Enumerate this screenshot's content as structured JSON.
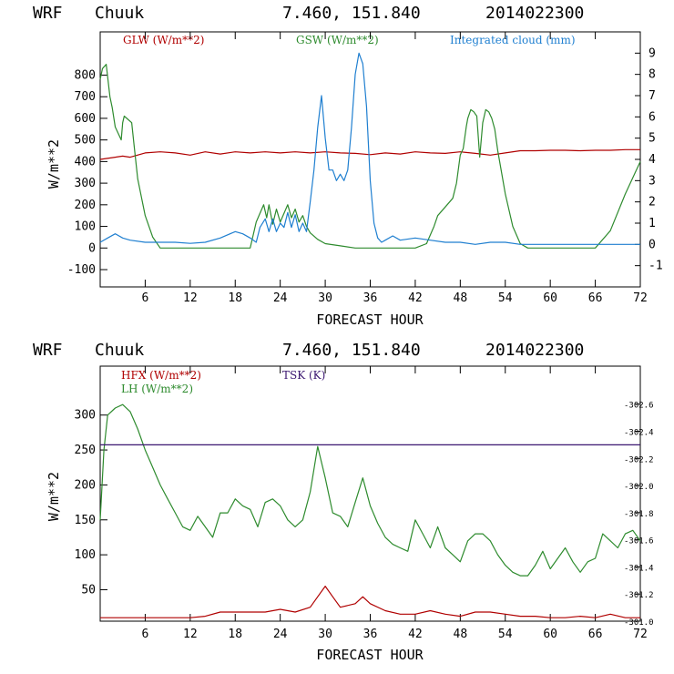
{
  "chart_data": [
    {
      "type": "line",
      "header": {
        "model": "WRF",
        "station": "Chuuk",
        "coords": "7.460, 151.840",
        "date": "2014022300"
      },
      "xlabel": "FORECAST HOUR",
      "ylabel": "W/m**2",
      "xlim": [
        0,
        72
      ],
      "xticks": [
        6,
        12,
        18,
        24,
        30,
        36,
        42,
        48,
        54,
        60,
        66,
        72
      ],
      "ylim": [
        -180,
        1000
      ],
      "yticks": [
        -100,
        0,
        100,
        200,
        300,
        400,
        500,
        600,
        700,
        800
      ],
      "y2label": "Integrated cloud (mm)",
      "y2lim": [
        -2,
        10
      ],
      "y2ticks": [
        -1,
        0,
        1,
        2,
        3,
        4,
        5,
        6,
        7,
        8,
        9
      ],
      "series": [
        {
          "name": "GLW (W/m**2)",
          "color": "#b00000",
          "axis": "left",
          "x": [
            0,
            2,
            3,
            4,
            6,
            8,
            10,
            12,
            14,
            16,
            18,
            20,
            22,
            24,
            26,
            28,
            30,
            32,
            34,
            36,
            38,
            40,
            42,
            44,
            46,
            48,
            50,
            52,
            54,
            56,
            58,
            60,
            62,
            64,
            66,
            68,
            70,
            72
          ],
          "values": [
            410,
            420,
            425,
            420,
            440,
            445,
            440,
            430,
            445,
            435,
            445,
            440,
            445,
            440,
            445,
            440,
            445,
            440,
            438,
            432,
            440,
            435,
            445,
            440,
            438,
            445,
            438,
            430,
            440,
            450,
            450,
            452,
            452,
            450,
            452,
            452,
            455,
            455
          ]
        },
        {
          "name": "GSW (W/m**2)",
          "color": "#2e8b2e",
          "axis": "left",
          "x": [
            0,
            0.3,
            0.8,
            1.3,
            1.6,
            2,
            2.8,
            3,
            3.2,
            4.2,
            4.5,
            5,
            6,
            7,
            8,
            9,
            10,
            20,
            20.8,
            21.3,
            21.8,
            22.2,
            22.5,
            23,
            23.5,
            24,
            25,
            25.5,
            26,
            26.5,
            27,
            27.5,
            28,
            29,
            30,
            32,
            34,
            36,
            38,
            40,
            42,
            43.5,
            44.5,
            45,
            46,
            47,
            47.5,
            48,
            48.4,
            48.8,
            49,
            49.4,
            49.8,
            50.2,
            50.6,
            51,
            51.4,
            51.8,
            52.2,
            52.6,
            53,
            54,
            55,
            56,
            57,
            58,
            59,
            60,
            66,
            68,
            70,
            72
          ],
          "values": [
            780,
            830,
            850,
            700,
            650,
            560,
            500,
            580,
            610,
            580,
            480,
            320,
            150,
            50,
            0,
            0,
            0,
            0,
            120,
            160,
            200,
            140,
            200,
            110,
            180,
            120,
            200,
            140,
            180,
            120,
            150,
            100,
            70,
            40,
            20,
            10,
            0,
            0,
            0,
            0,
            0,
            20,
            100,
            150,
            190,
            230,
            300,
            430,
            460,
            560,
            600,
            640,
            630,
            610,
            420,
            580,
            640,
            630,
            600,
            550,
            450,
            250,
            100,
            20,
            0,
            0,
            0,
            0,
            0,
            80,
            250,
            400
          ]
        },
        {
          "name": "Integrated cloud (mm)",
          "color": "#1f7fd0",
          "axis": "right",
          "x": [
            0,
            1,
            2,
            3,
            4,
            6,
            8,
            10,
            12,
            14,
            16,
            18,
            19,
            20,
            20.8,
            21.3,
            22,
            22.5,
            23,
            23.5,
            24,
            24.5,
            25,
            25.5,
            26,
            26.5,
            27,
            27.5,
            28,
            28.5,
            29,
            29.5,
            30,
            30.5,
            31,
            31.5,
            32,
            32.5,
            33,
            33.5,
            34,
            34.5,
            35,
            35.5,
            36,
            36.5,
            37,
            37.5,
            38,
            39,
            40,
            42,
            44,
            46,
            48,
            50,
            52,
            54,
            56,
            58,
            60,
            62,
            64,
            66,
            68,
            70,
            72
          ],
          "values": [
            0.1,
            0.3,
            0.5,
            0.3,
            0.2,
            0.1,
            0.1,
            0.1,
            0.05,
            0.1,
            0.3,
            0.6,
            0.5,
            0.3,
            0.1,
            0.8,
            1.2,
            0.6,
            1.2,
            0.6,
            1.0,
            0.8,
            1.5,
            0.8,
            1.4,
            0.6,
            1.0,
            0.6,
            2.0,
            3.5,
            5.5,
            7.0,
            5.0,
            3.5,
            3.5,
            3.0,
            3.3,
            3.0,
            3.5,
            5.5,
            8.0,
            9.0,
            8.5,
            6.5,
            3.0,
            1.0,
            0.3,
            0.1,
            0.2,
            0.4,
            0.2,
            0.3,
            0.2,
            0.1,
            0.1,
            0.0,
            0.1,
            0.1,
            0.0,
            0.0,
            0.0,
            0.0,
            0.0,
            0.0,
            0.0,
            0.0,
            0.0
          ]
        }
      ]
    },
    {
      "type": "line",
      "header": {
        "model": "WRF",
        "station": "Chuuk",
        "coords": "7.460, 151.840",
        "date": "2014022300"
      },
      "xlabel": "FORECAST HOUR",
      "ylabel": "W/m**2",
      "xlim": [
        0,
        72
      ],
      "xticks": [
        6,
        12,
        18,
        24,
        30,
        36,
        42,
        48,
        54,
        60,
        66,
        72
      ],
      "ylim": [
        5,
        370
      ],
      "yticks": [
        50,
        100,
        150,
        200,
        250,
        300
      ],
      "y2label": "TSK (K)",
      "y2lim": [
        301.0,
        302.88
      ],
      "y2ticks": [
        "302.6",
        "302.4",
        "302.2",
        "302.0",
        "301.8",
        "301.6",
        "301.4",
        "301.2",
        "301.0"
      ],
      "y2tickvalues": [
        302.6,
        302.4,
        302.2,
        302.0,
        301.8,
        301.6,
        301.4,
        301.2,
        301.0
      ],
      "series": [
        {
          "name": "HFX (W/m**2)",
          "color": "#b00000",
          "axis": "left",
          "x": [
            0,
            2,
            4,
            6,
            8,
            10,
            12,
            14,
            16,
            18,
            20,
            22,
            24,
            26,
            28,
            29,
            30,
            31,
            32,
            34,
            35,
            36,
            38,
            40,
            42,
            44,
            46,
            48,
            50,
            52,
            54,
            56,
            58,
            60,
            62,
            64,
            66,
            68,
            70,
            72
          ],
          "values": [
            10,
            10,
            10,
            10,
            10,
            10,
            10,
            12,
            18,
            18,
            18,
            18,
            22,
            18,
            25,
            40,
            55,
            40,
            25,
            30,
            40,
            30,
            20,
            15,
            15,
            20,
            15,
            12,
            18,
            18,
            15,
            12,
            12,
            10,
            10,
            12,
            10,
            15,
            10,
            10
          ]
        },
        {
          "name": "LH (W/m**2)",
          "color": "#2e8b2e",
          "axis": "left",
          "x": [
            0,
            0.5,
            1,
            2,
            3,
            4,
            5,
            6,
            7,
            8,
            9,
            10,
            11,
            12,
            13,
            14,
            15,
            16,
            17,
            18,
            19,
            20,
            21,
            22,
            23,
            24,
            25,
            26,
            27,
            28,
            29,
            30,
            31,
            32,
            33,
            34,
            35,
            36,
            37,
            38,
            39,
            40,
            41,
            42,
            43,
            44,
            45,
            46,
            47,
            48,
            49,
            50,
            51,
            52,
            53,
            54,
            55,
            56,
            57,
            58,
            59,
            60,
            61,
            62,
            63,
            64,
            65,
            66,
            67,
            68,
            69,
            70,
            71,
            72
          ],
          "values": [
            150,
            250,
            300,
            310,
            315,
            305,
            280,
            250,
            225,
            200,
            180,
            160,
            140,
            135,
            155,
            140,
            125,
            160,
            160,
            180,
            170,
            165,
            140,
            175,
            180,
            170,
            150,
            140,
            150,
            190,
            255,
            210,
            160,
            155,
            140,
            175,
            210,
            170,
            145,
            125,
            115,
            110,
            105,
            150,
            130,
            110,
            140,
            110,
            100,
            90,
            120,
            130,
            130,
            120,
            100,
            85,
            75,
            70,
            70,
            85,
            105,
            80,
            95,
            110,
            90,
            75,
            90,
            95,
            130,
            120,
            110,
            130,
            135,
            120
          ]
        },
        {
          "name": "TSK (K)",
          "color": "#3a1670",
          "axis": "right",
          "x": [
            0,
            72
          ],
          "values": [
            302.3,
            302.3
          ]
        }
      ]
    }
  ]
}
